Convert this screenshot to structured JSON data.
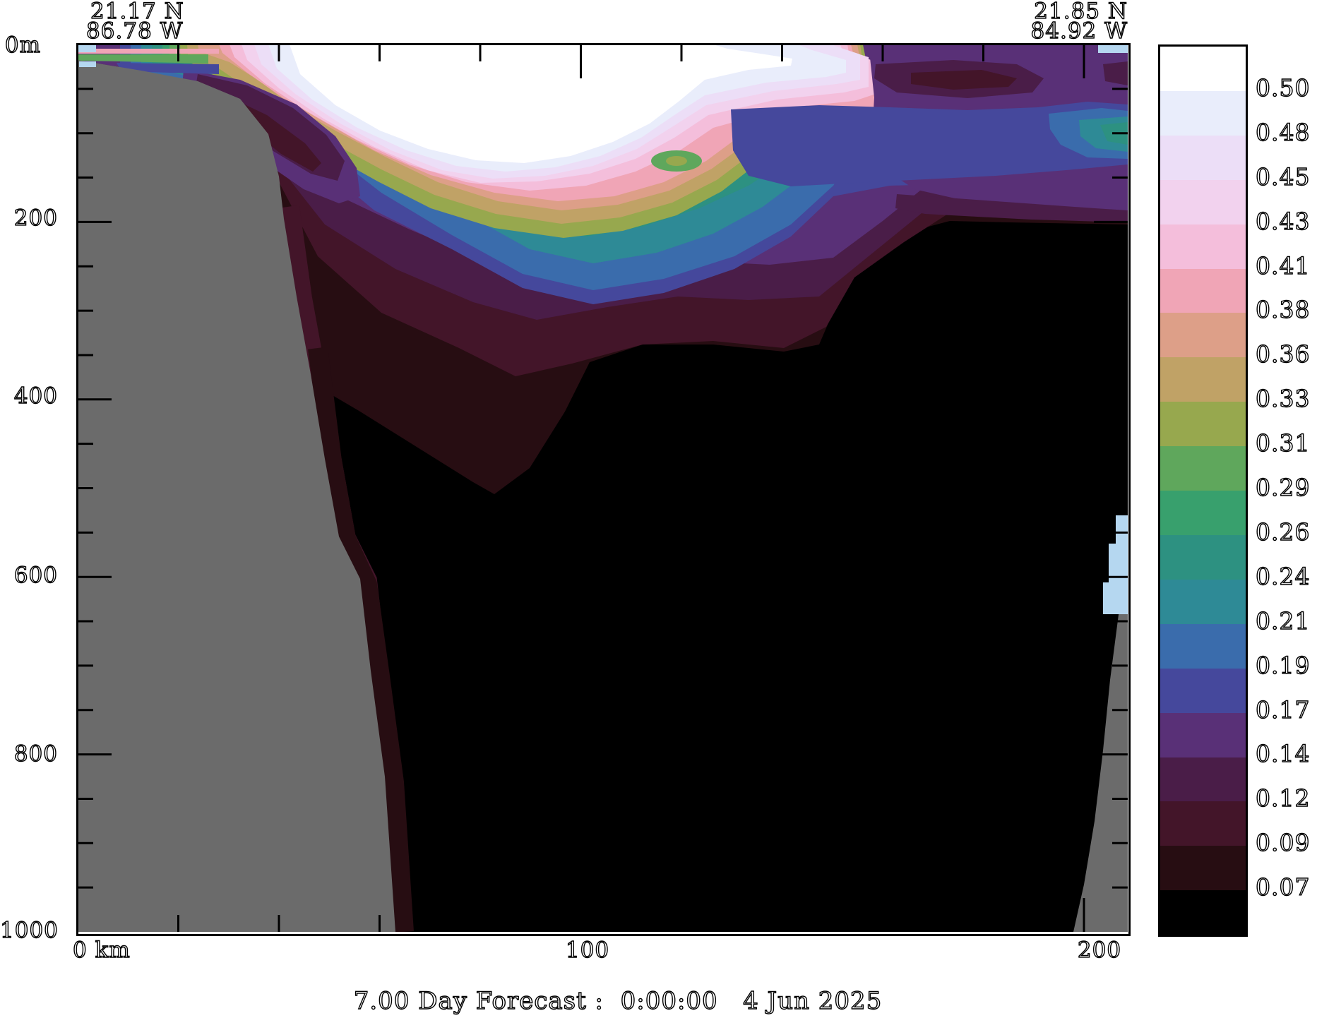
{
  "header": {
    "start_point": {
      "lat": "21.17 N",
      "lon": "86.78 W"
    },
    "end_point": {
      "lat": "21.85 N",
      "lon": "84.92 W"
    }
  },
  "title": "7.00 Day Forecast :  0:00:00   4 Jun 2025",
  "axes": {
    "depth_surface_label": "0m",
    "depth_tick_labels": [
      "200",
      "400",
      "600",
      "800",
      "1000"
    ],
    "distance_tick_labels": [
      "0 km",
      "100",
      "200"
    ]
  },
  "colorbar": {
    "boundary_labels": [
      "0.50",
      "0.48",
      "0.45",
      "0.43",
      "0.41",
      "0.38",
      "0.36",
      "0.33",
      "0.31",
      "0.29",
      "0.26",
      "0.24",
      "0.21",
      "0.19",
      "0.17",
      "0.14",
      "0.12",
      "0.09",
      "0.07"
    ],
    "segment_colors_top_to_bottom": [
      "#ffffff",
      "#e9edfb",
      "#ecdef7",
      "#f2d2ee",
      "#f4bedb",
      "#f0a5b6",
      "#dd9f88",
      "#c0a266",
      "#97a84e",
      "#5fa75c",
      "#38a06d",
      "#2d9181",
      "#2e8a96",
      "#3a6cac",
      "#45489c",
      "#593077",
      "#4a1d48",
      "#431529",
      "#270d12",
      "#000000"
    ]
  },
  "chart_data": {
    "type": "heatmap",
    "subtype": "filled_contour_vertical_ocean_section",
    "title": "7.00 Day Forecast :  0:00:00   4 Jun 2025",
    "x_axis": {
      "label_units": "km",
      "range_km": [
        0,
        209
      ],
      "tick_labels": [
        "0 km",
        "100",
        "200"
      ],
      "minor_tick_interval_km": 20
    },
    "y_axis": {
      "label_units": "m depth",
      "range_m": [
        0,
        1000
      ],
      "tick_labels": [
        "0m",
        "200",
        "400",
        "600",
        "800",
        "1000"
      ],
      "minor_tick_interval_m": 50
    },
    "section_endpoints": {
      "start": "21.17 N, 86.78 W",
      "end": "21.85 N, 84.92 W"
    },
    "contour_levels": [
      0.07,
      0.09,
      0.12,
      0.14,
      0.17,
      0.19,
      0.21,
      0.24,
      0.26,
      0.29,
      0.31,
      0.33,
      0.36,
      0.38,
      0.41,
      0.43,
      0.45,
      0.48,
      0.5
    ],
    "level_colors_low_to_high": [
      "#000000",
      "#270d12",
      "#431529",
      "#4a1d48",
      "#593077",
      "#45489c",
      "#3a6cac",
      "#2e8a96",
      "#2d9181",
      "#38a06d",
      "#5fa75c",
      "#97a84e",
      "#c0a266",
      "#dd9f88",
      "#f0a5b6",
      "#f4bedb",
      "#f2d2ee",
      "#ecdef7",
      "#e9edfb",
      "#ffffff"
    ],
    "land_mask_color": "#6b6b6b",
    "features": [
      {
        "name": "continental-slope-land",
        "side": "left",
        "extent": "from surface near 0 km down to 1000 m near 60 km"
      },
      {
        "name": "bottom-rise-land",
        "side": "right",
        "extent": "below ~580 m at far right edge near 200+ km"
      },
      {
        "name": "surface-maximum-plume",
        "value": ">0.50",
        "location": "0-230 m depth, 40-135 km",
        "color": "#ffffff"
      },
      {
        "name": "subsurface-green-band",
        "value": "0.26-0.33",
        "location": "100-260 m depth, 30-160 km"
      },
      {
        "name": "purple-upper-layer",
        "value": "0.12-0.19",
        "location": "0-300 m depth, 130-209 km"
      },
      {
        "name": "deep-field",
        "value": "<0.07",
        "location": "below ~250-500 m everywhere",
        "color": "#000000"
      }
    ],
    "legend_position": "right",
    "grid": false
  }
}
